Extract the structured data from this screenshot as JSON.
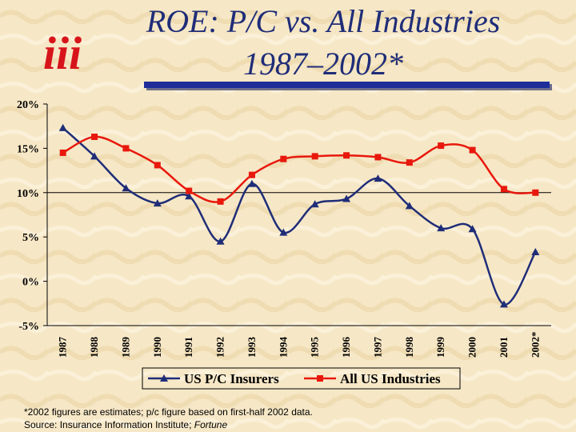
{
  "logo": "iii",
  "chart_data": {
    "type": "line",
    "title": "ROE: P/C vs. All Industries",
    "subtitle": "1987–2002*",
    "categories": [
      "1987",
      "1988",
      "1989",
      "1990",
      "1991",
      "1992",
      "1993",
      "1994",
      "1995",
      "1996",
      "1997",
      "1998",
      "1999",
      "2000",
      "2001",
      "2002*"
    ],
    "series": [
      {
        "name": "US P/C Insurers",
        "color": "#1f2d78",
        "marker": "triangle",
        "values": [
          17.3,
          14.1,
          10.5,
          8.8,
          9.6,
          4.5,
          11.0,
          5.5,
          8.7,
          9.3,
          11.6,
          8.5,
          6.0,
          5.9,
          -2.6,
          3.3
        ]
      },
      {
        "name": "All US Industries",
        "color": "#e8180c",
        "marker": "square",
        "values": [
          14.5,
          16.3,
          15.0,
          13.1,
          10.2,
          9.0,
          12.0,
          13.8,
          14.1,
          14.2,
          14.0,
          13.4,
          15.3,
          14.8,
          10.4,
          10.0
        ]
      }
    ],
    "ylim": [
      -5,
      20
    ],
    "yticks": [
      {
        "value": -5,
        "label": "-5%"
      },
      {
        "value": 0,
        "label": "0%"
      },
      {
        "value": 5,
        "label": "5%"
      },
      {
        "value": 10,
        "label": "10%"
      },
      {
        "value": 15,
        "label": "15%"
      },
      {
        "value": 20,
        "label": "20%"
      }
    ],
    "grid_values": [
      10
    ],
    "footnote": "*2002 figures are estimates; p/c figure based on first-half 2002 data.",
    "source": "Source:  Insurance Information Institute; ",
    "source_italic": "Fortune"
  }
}
